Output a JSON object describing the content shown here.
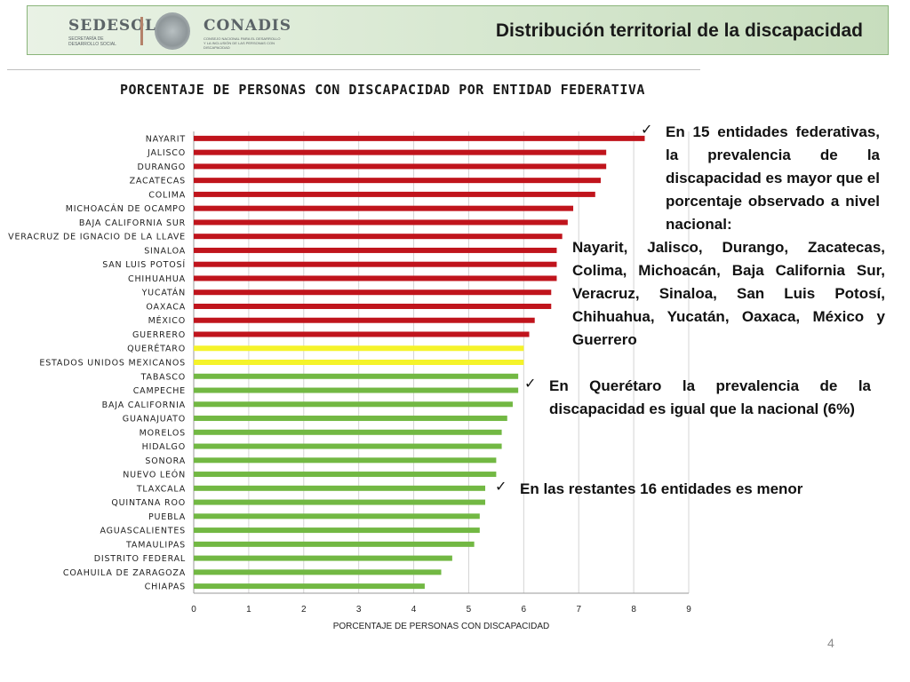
{
  "header": {
    "logo_left_name": "SEDESOL",
    "logo_left_sub": "SECRETARÍA DE DESARROLLO SOCIAL",
    "logo_right_name": "CONADIS",
    "logo_right_sub": "CONSEJO NACIONAL PARA EL DESARROLLO Y LA INCLUSIÓN DE LAS PERSONAS CON DISCAPACIDAD",
    "title": "Distribución territorial de la discapacidad"
  },
  "chart_data": {
    "type": "bar",
    "orientation": "horizontal",
    "title": "PORCENTAJE DE PERSONAS CON DISCAPACIDAD POR ENTIDAD FEDERATIVA",
    "xlabel": "PORCENTAJE DE PERSONAS CON DISCAPACIDAD",
    "ylabel": "",
    "xlim": [
      0,
      9
    ],
    "xticks": [
      "0",
      "1",
      "2",
      "3",
      "4",
      "5",
      "6",
      "7",
      "8",
      "9"
    ],
    "grid": true,
    "colors": {
      "above": "#c0141c",
      "equal": "#f5f32a",
      "below": "#72b843"
    },
    "categories": [
      "NAYARIT",
      "JALISCO",
      "DURANGO",
      "ZACATECAS",
      "COLIMA",
      "MICHOACÁN DE OCAMPO",
      "BAJA CALIFORNIA SUR",
      "VERACRUZ DE IGNACIO DE LA LLAVE",
      "SINALOA",
      "SAN LUIS POTOSÍ",
      "CHIHUAHUA",
      "YUCATÁN",
      "OAXACA",
      "MÉXICO",
      "GUERRERO",
      "QUERÉTARO",
      "ESTADOS UNIDOS MEXICANOS",
      "TABASCO",
      "CAMPECHE",
      "BAJA CALIFORNIA",
      "GUANAJUATO",
      "MORELOS",
      "HIDALGO",
      "SONORA",
      "NUEVO LEÓN",
      "TLAXCALA",
      "QUINTANA ROO",
      "PUEBLA",
      "AGUASCALIENTES",
      "TAMAULIPAS",
      "DISTRITO FEDERAL",
      "COAHUILA DE ZARAGOZA",
      "CHIAPAS"
    ],
    "values": [
      8.2,
      7.5,
      7.5,
      7.4,
      7.3,
      6.9,
      6.8,
      6.7,
      6.6,
      6.6,
      6.6,
      6.5,
      6.5,
      6.2,
      6.1,
      6.0,
      6.0,
      5.9,
      5.9,
      5.8,
      5.7,
      5.6,
      5.6,
      5.5,
      5.5,
      5.3,
      5.3,
      5.2,
      5.2,
      5.1,
      4.7,
      4.5,
      4.2
    ],
    "groups": [
      "above",
      "above",
      "above",
      "above",
      "above",
      "above",
      "above",
      "above",
      "above",
      "above",
      "above",
      "above",
      "above",
      "above",
      "above",
      "equal",
      "equal",
      "below",
      "below",
      "below",
      "below",
      "below",
      "below",
      "below",
      "below",
      "below",
      "below",
      "below",
      "below",
      "below",
      "below",
      "below",
      "below"
    ]
  },
  "notes": {
    "note1_intro": "En 15 entidades federativas, la prevalencia de la discapacidad es mayor que el porcentaje observado a nivel nacional:",
    "note1_list": "Nayarit, Jalisco, Durango, Zacatecas, Colima, Michoacán, Baja California Sur, Veracruz, Sinaloa, San Luis Potosí, Chihuahua, Yucatán, Oaxaca, México y Guerrero",
    "note2": "En Querétaro la prevalencia de la discapacidad es igual que la nacional (6%)",
    "note3": "En las restantes 16 entidades es menor",
    "check_icon": "✓"
  },
  "page_number": "4"
}
